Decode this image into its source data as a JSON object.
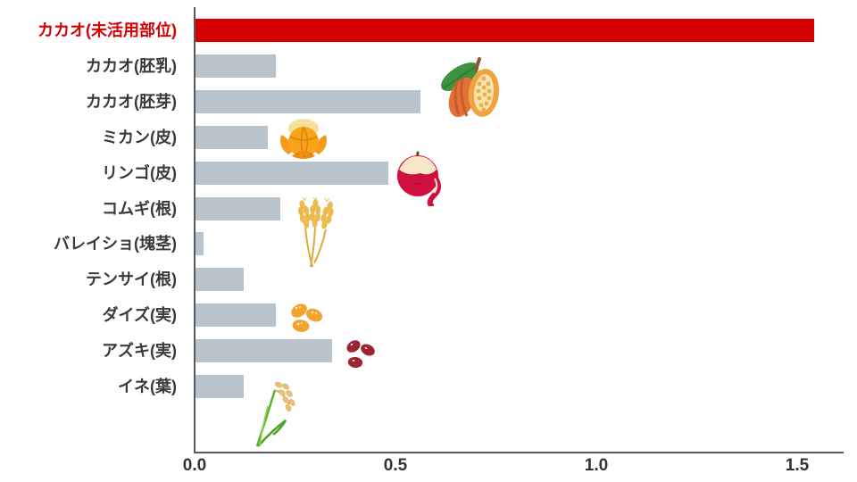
{
  "chart_data": {
    "type": "bar",
    "orientation": "horizontal",
    "title": "",
    "xlabel": "",
    "ylabel": "",
    "categories": [
      "カカオ(未活用部位)",
      "カカオ(胚乳)",
      "カカオ(胚芽)",
      "ミカン(皮)",
      "リンゴ(皮)",
      "コムギ(根)",
      "バレイショ(塊茎)",
      "テンサイ(根)",
      "ダイズ(実)",
      "アズキ(実)",
      "イネ(葉)"
    ],
    "values": [
      1.54,
      0.2,
      0.56,
      0.18,
      0.48,
      0.21,
      0.02,
      0.12,
      0.2,
      0.34,
      0.12
    ],
    "highlight_index": 0,
    "xlim": [
      0,
      1.6
    ],
    "x_ticks": [
      "0.0",
      "0.5",
      "1.0",
      "1.5"
    ],
    "x_tick_values": [
      0,
      0.5,
      1.0,
      1.5
    ],
    "grid": false,
    "legend": "none",
    "colors": {
      "highlight_bar": "#d70000",
      "bar": "#b8c3cc",
      "axis": "#58595b",
      "tick_text": "#333333",
      "label_text": "#3a3a3a",
      "highlight_label_text": "#d70000"
    },
    "decorative_icons": [
      {
        "name": "cacao-pods-icon",
        "near_row": "カカオ(胚芽)"
      },
      {
        "name": "mandarin-peel-icon",
        "near_row": "ミカン(皮)"
      },
      {
        "name": "apple-peel-icon",
        "near_row": "リンゴ(皮)"
      },
      {
        "name": "wheat-ears-icon",
        "near_row": "コムギ(根)"
      },
      {
        "name": "soybeans-icon",
        "near_row": "ダイズ(実)"
      },
      {
        "name": "azuki-beans-icon",
        "near_row": "アズキ(実)"
      },
      {
        "name": "rice-plant-icon",
        "near_row": "イネ(葉)"
      }
    ]
  }
}
